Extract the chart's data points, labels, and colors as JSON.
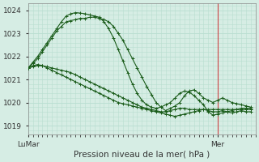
{
  "title": "Pression niveau de la mer( hPa )",
  "bg_color": "#d6ede4",
  "grid_color": "#b8ddd0",
  "line_color": "#1a5c1a",
  "vline_color": "#cc4444",
  "ylim": [
    1018.6,
    1024.3
  ],
  "yticks": [
    1019,
    1020,
    1021,
    1022,
    1023,
    1024
  ],
  "xlim": [
    0,
    48
  ],
  "x_lu": 0,
  "x_mar": 2,
  "x_mer": 40,
  "vline_x": 40,
  "series": [
    {
      "x": [
        0,
        1,
        2,
        3,
        4,
        5,
        6,
        7,
        8,
        9,
        10,
        11,
        12,
        13,
        14,
        15,
        16,
        17,
        18,
        19,
        20,
        21,
        22,
        23,
        24,
        25,
        26,
        27,
        28,
        29,
        30,
        31,
        32,
        33,
        34,
        35,
        36,
        37,
        38,
        39,
        40,
        41,
        42,
        43,
        44,
        45,
        46,
        47
      ],
      "y": [
        1021.5,
        1021.6,
        1021.65,
        1021.6,
        1021.5,
        1021.4,
        1021.3,
        1021.2,
        1021.1,
        1021.0,
        1020.9,
        1020.8,
        1020.7,
        1020.6,
        1020.5,
        1020.4,
        1020.3,
        1020.2,
        1020.1,
        1020.0,
        1019.95,
        1019.9,
        1019.85,
        1019.8,
        1019.75,
        1019.7,
        1019.65,
        1019.6,
        1019.55,
        1019.5,
        1019.45,
        1019.4,
        1019.45,
        1019.5,
        1019.55,
        1019.6,
        1019.65,
        1019.7,
        1019.65,
        1019.6,
        1019.6,
        1019.65,
        1019.6,
        1019.55,
        1019.6,
        1019.65,
        1019.6,
        1019.6
      ]
    },
    {
      "x": [
        0,
        1,
        2,
        3,
        4,
        5,
        6,
        7,
        8,
        9,
        10,
        11,
        12,
        13,
        14,
        15,
        16,
        17,
        18,
        19,
        20,
        21,
        22,
        23,
        24,
        25,
        26,
        27,
        28,
        29,
        30,
        31,
        32,
        33,
        34,
        35,
        36,
        37,
        38,
        39,
        40,
        41,
        42,
        43,
        44,
        45,
        46,
        47
      ],
      "y": [
        1021.5,
        1021.55,
        1021.6,
        1021.6,
        1021.55,
        1021.5,
        1021.45,
        1021.4,
        1021.35,
        1021.3,
        1021.2,
        1021.1,
        1021.0,
        1020.9,
        1020.8,
        1020.7,
        1020.6,
        1020.5,
        1020.4,
        1020.3,
        1020.2,
        1020.1,
        1020.0,
        1019.9,
        1019.8,
        1019.75,
        1019.7,
        1019.65,
        1019.6,
        1019.6,
        1019.65,
        1019.7,
        1019.75,
        1019.75,
        1019.7,
        1019.7,
        1019.7,
        1019.7,
        1019.7,
        1019.7,
        1019.7,
        1019.7,
        1019.7,
        1019.7,
        1019.7,
        1019.7,
        1019.7,
        1019.7
      ]
    },
    {
      "x": [
        0,
        1,
        2,
        3,
        4,
        5,
        6,
        7,
        8,
        9,
        10,
        11,
        12,
        13,
        14,
        15,
        16,
        17,
        18,
        19,
        20,
        21,
        22,
        23,
        24,
        25,
        26,
        27,
        28,
        29,
        30,
        31,
        32,
        33,
        34,
        35,
        36,
        37,
        38,
        39,
        40,
        41,
        42,
        43,
        44,
        45,
        46,
        47
      ],
      "y": [
        1021.5,
        1021.7,
        1021.9,
        1022.2,
        1022.5,
        1022.8,
        1023.1,
        1023.3,
        1023.5,
        1023.55,
        1023.6,
        1023.65,
        1023.65,
        1023.7,
        1023.7,
        1023.65,
        1023.6,
        1023.5,
        1023.3,
        1023.0,
        1022.7,
        1022.3,
        1021.9,
        1021.5,
        1021.1,
        1020.7,
        1020.35,
        1020.0,
        1019.8,
        1019.65,
        1019.75,
        1019.85,
        1020.0,
        1020.3,
        1020.5,
        1020.55,
        1020.4,
        1020.2,
        1020.1,
        1020.0,
        1020.1,
        1020.2,
        1020.1,
        1020.0,
        1019.95,
        1019.9,
        1019.85,
        1019.8
      ]
    },
    {
      "x": [
        0,
        1,
        2,
        3,
        4,
        5,
        6,
        7,
        8,
        9,
        10,
        11,
        12,
        13,
        14,
        15,
        16,
        17,
        18,
        19,
        20,
        21,
        22,
        23,
        24,
        25,
        26,
        27,
        28,
        29,
        30,
        31,
        32,
        33,
        34,
        35,
        36,
        37,
        38,
        39,
        40,
        41,
        42,
        43,
        44,
        45,
        46,
        47
      ],
      "y": [
        1021.5,
        1021.75,
        1022.0,
        1022.3,
        1022.6,
        1022.9,
        1023.2,
        1023.5,
        1023.75,
        1023.85,
        1023.9,
        1023.88,
        1023.85,
        1023.8,
        1023.75,
        1023.7,
        1023.5,
        1023.2,
        1022.8,
        1022.3,
        1021.8,
        1021.3,
        1020.8,
        1020.4,
        1020.1,
        1019.9,
        1019.8,
        1019.75,
        1019.8,
        1019.9,
        1020.0,
        1020.2,
        1020.4,
        1020.5,
        1020.45,
        1020.3,
        1020.1,
        1019.9,
        1019.6,
        1019.45,
        1019.5,
        1019.55,
        1019.6,
        1019.65,
        1019.7,
        1019.75,
        1019.75,
        1019.75
      ]
    }
  ]
}
